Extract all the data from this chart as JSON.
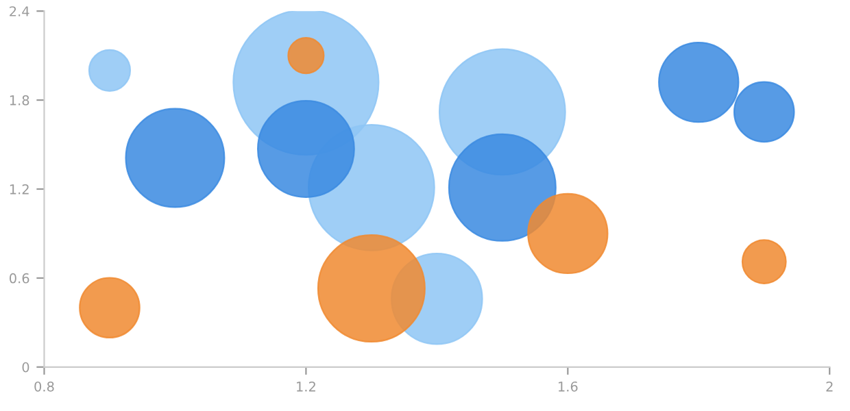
{
  "chart_data": {
    "type": "bubble",
    "xlim": [
      0.8,
      2
    ],
    "xticks": [
      0.8,
      1.2,
      1.6,
      2
    ],
    "ylim": [
      0,
      2.4
    ],
    "yticks": [
      0,
      0.6,
      1.2,
      1.8,
      2.4
    ],
    "grid": false,
    "series": [
      {
        "color": "#8ec5f5",
        "x": [
          0.9,
          1.2,
          1.3,
          1.4,
          1.5
        ],
        "values": [
          2.0,
          1.92,
          1.21,
          0.46,
          1.72
        ],
        "sizes": [
          0.08,
          1,
          0.75,
          0.39,
          0.75
        ]
      },
      {
        "color": "#3a8ae0",
        "x": [
          1.0,
          1.2,
          1.5,
          1.8,
          1.9
        ],
        "values": [
          1.41,
          1.47,
          1.21,
          1.92,
          1.72
        ],
        "sizes": [
          0.46,
          0.44,
          0.54,
          0.3,
          0.17
        ]
      },
      {
        "color": "#f08a30",
        "x": [
          1.2,
          0.9,
          1.3,
          1.6,
          1.9
        ],
        "values": [
          2.1,
          0.4,
          0.53,
          0.9,
          0.71
        ],
        "sizes": [
          0.06,
          0.17,
          0.54,
          0.3,
          0.09
        ]
      }
    ]
  }
}
